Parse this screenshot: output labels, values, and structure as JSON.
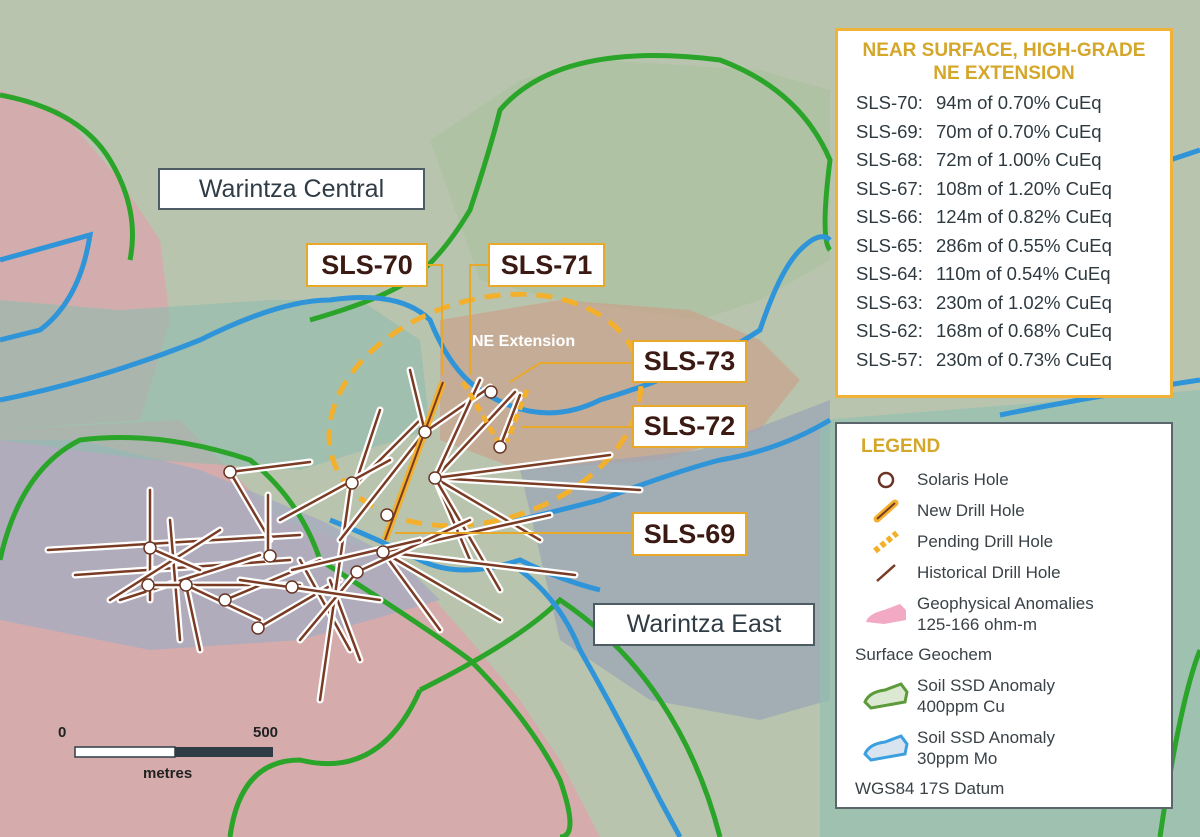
{
  "map": {
    "area_labels": {
      "central": "Warintza Central",
      "east": "Warintza East"
    },
    "hole_labels": {
      "sls70": "SLS-70",
      "sls71": "SLS-71",
      "sls73": "SLS-73",
      "sls72": "SLS-72",
      "sls69": "SLS-69"
    },
    "target_label": "NE Extension",
    "scale": {
      "start": "0",
      "end": "500",
      "unit": "metres"
    },
    "colors": {
      "cu_anomaly": "#2aa52a",
      "mo_anomaly": "#2f95d8",
      "geophysical": "#d9a3ad",
      "new_hole": "#f0a92a",
      "historical_hole": "#7a3b24"
    }
  },
  "summary": {
    "title_line1": "NEAR SURFACE, HIGH-GRADE",
    "title_line2": "NE EXTENSION",
    "rows": [
      {
        "hole": "SLS-70:",
        "result": "94m of 0.70% CuEq"
      },
      {
        "hole": "SLS-69:",
        "result": "70m of 0.70% CuEq"
      },
      {
        "hole": "SLS-68:",
        "result": "72m of 1.00% CuEq"
      },
      {
        "hole": "SLS-67:",
        "result": "108m of 1.20% CuEq"
      },
      {
        "hole": "SLS-66:",
        "result": "124m of 0.82% CuEq"
      },
      {
        "hole": "SLS-65:",
        "result": "286m of 0.55% CuEq"
      },
      {
        "hole": "SLS-64:",
        "result": "110m of 0.54% CuEq"
      },
      {
        "hole": "SLS-63:",
        "result": "230m of 1.02% CuEq"
      },
      {
        "hole": "SLS-62:",
        "result": "168m of 0.68% CuEq"
      },
      {
        "hole": "SLS-57:",
        "result": "230m of 0.73% CuEq"
      }
    ]
  },
  "legend": {
    "title": "LEGEND",
    "solaris_hole": "Solaris Hole",
    "new_drill_hole": "New Drill Hole",
    "pending_drill_hole": "Pending Drill Hole",
    "historical_drill_hole": "Historical Drill Hole",
    "geophysical_1": "Geophysical Anomalies",
    "geophysical_2": "125-166 ohm-m",
    "surface_geochem": "Surface Geochem",
    "cu_1": "Soil SSD Anomaly",
    "cu_2": "400ppm Cu",
    "mo_1": "Soil SSD Anomaly",
    "mo_2": "30ppm Mo",
    "datum": "WGS84 17S Datum"
  }
}
